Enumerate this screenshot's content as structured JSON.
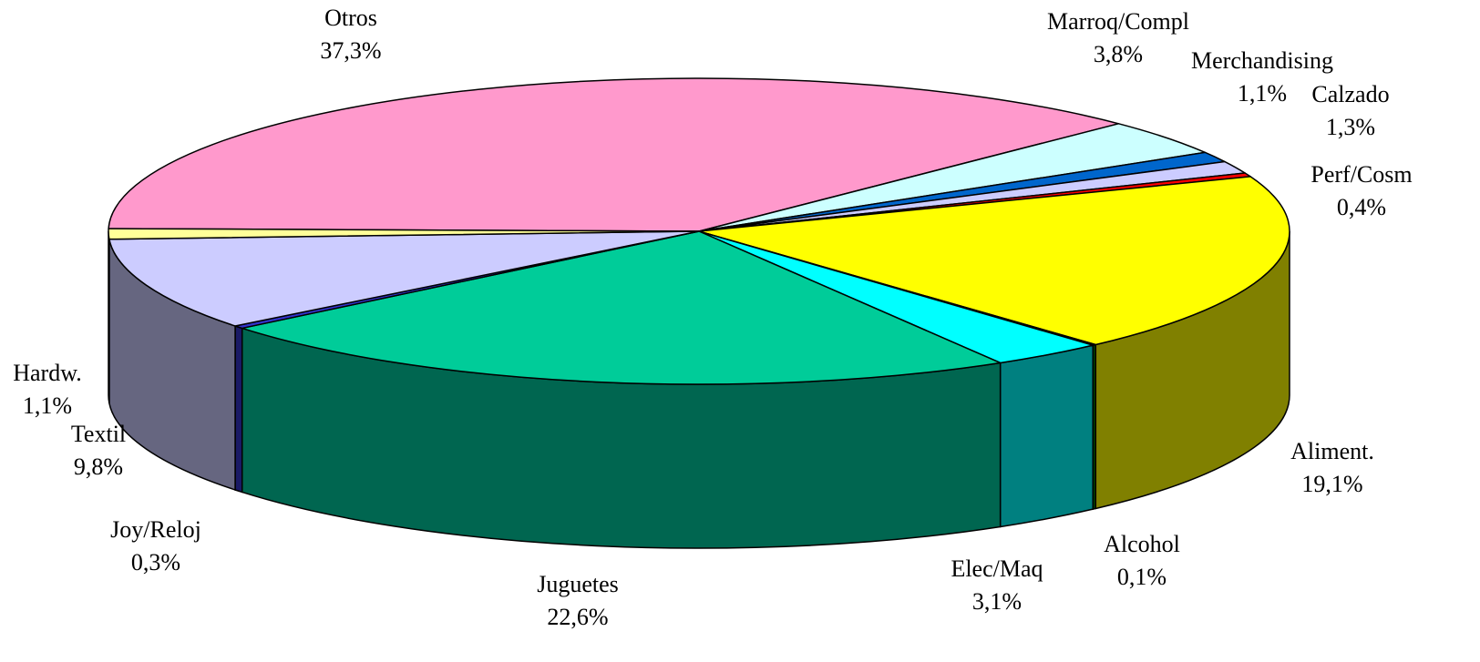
{
  "chart_data": {
    "type": "pie",
    "subtype": "3d",
    "slices": [
      {
        "label": "Otros",
        "value": 37.3,
        "value_label": "37,3%",
        "color": "#FF99CC",
        "side_color": "#FF99CC"
      },
      {
        "label": "Marroq/Compl",
        "value": 3.8,
        "value_label": "3,8%",
        "color": "#CCFFFF",
        "side_color": "#66CCCC"
      },
      {
        "label": "Merchandising",
        "value": 1.1,
        "value_label": "1,1%",
        "color": "#0066CC",
        "side_color": "#003366"
      },
      {
        "label": "Calzado",
        "value": 1.3,
        "value_label": "1,3%",
        "color": "#CCCCFF",
        "side_color": "#666699"
      },
      {
        "label": "Perf/Cosm",
        "value": 0.4,
        "value_label": "0,4%",
        "color": "#FF0000",
        "side_color": "#800000"
      },
      {
        "label": "Aliment.",
        "value": 19.1,
        "value_label": "19,1%",
        "color": "#FFFF00",
        "side_color": "#808000"
      },
      {
        "label": "Alcohol",
        "value": 0.1,
        "value_label": "0,1%",
        "color": "#008000",
        "side_color": "#004000"
      },
      {
        "label": "Elec/Maq",
        "value": 3.1,
        "value_label": "3,1%",
        "color": "#00FFFF",
        "side_color": "#008080"
      },
      {
        "label": "Juguetes",
        "value": 22.6,
        "value_label": "22,6%",
        "color": "#00CC99",
        "side_color": "#006650"
      },
      {
        "label": "Joy/Reloj",
        "value": 0.3,
        "value_label": "0,3%",
        "color": "#3333CC",
        "side_color": "#1A1A66"
      },
      {
        "label": "Textil",
        "value": 9.8,
        "value_label": "9,8%",
        "color": "#CCCCFF",
        "side_color": "#666680"
      },
      {
        "label": "Hardw.",
        "value": 1.1,
        "value_label": "1,1%",
        "color": "#FFFF99",
        "side_color": "#80804D"
      }
    ],
    "legend": "none"
  }
}
